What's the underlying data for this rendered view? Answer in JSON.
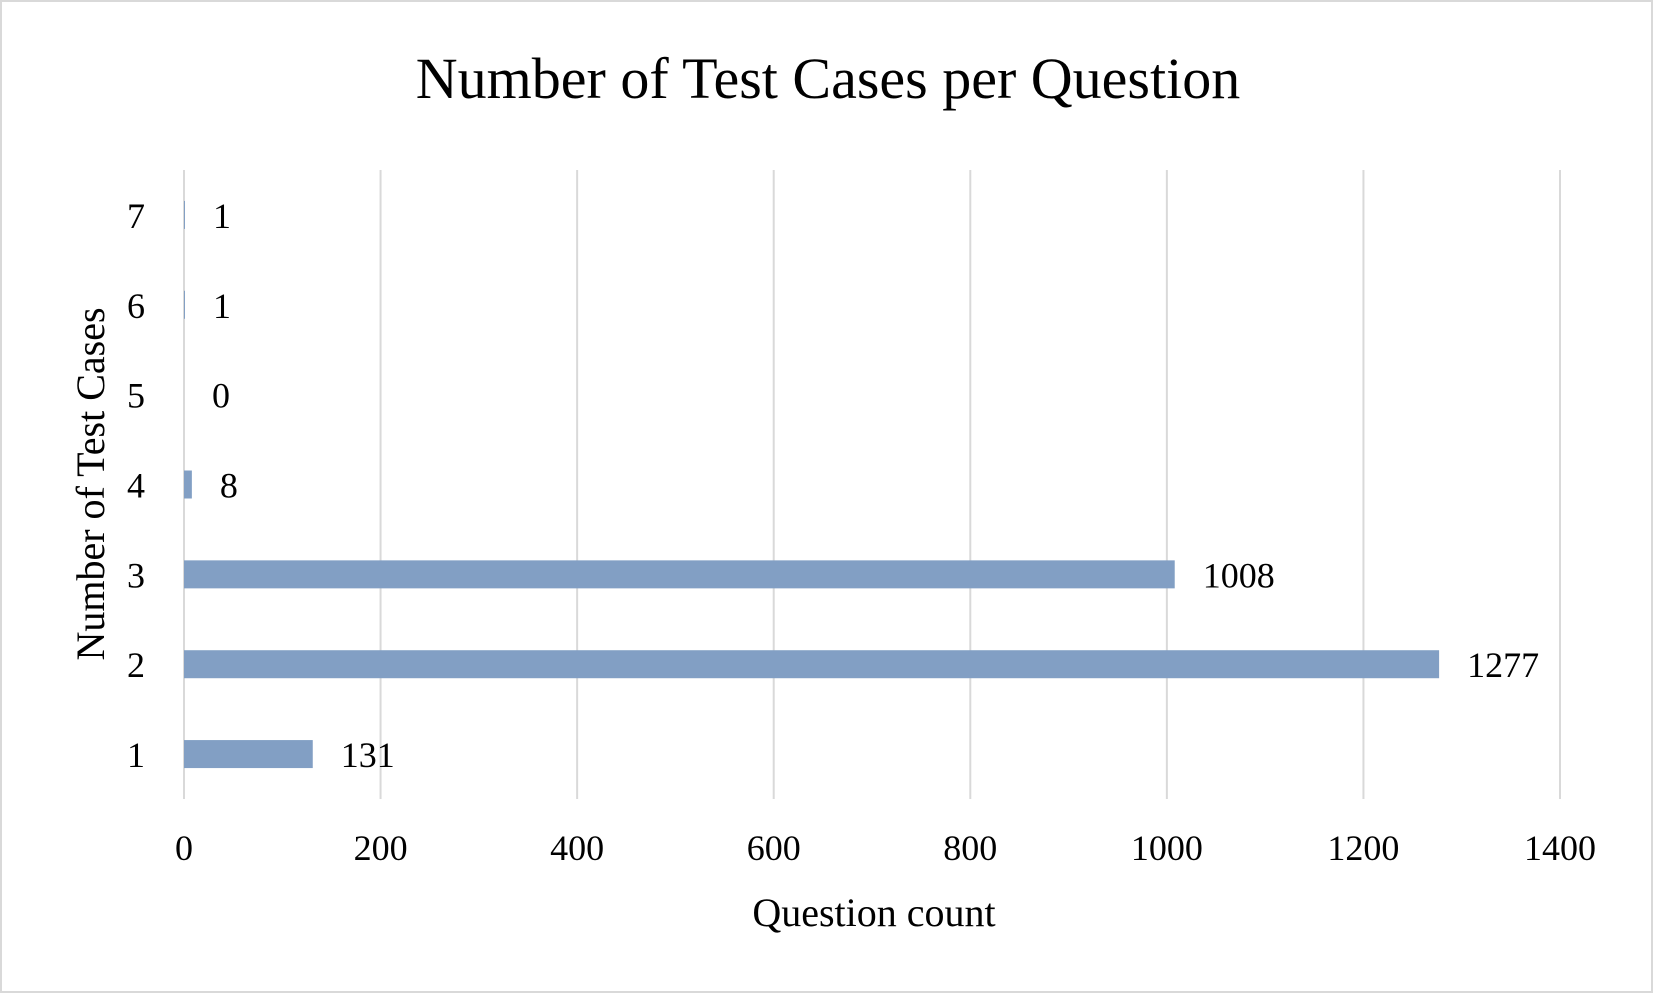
{
  "chart_data": {
    "type": "bar",
    "orientation": "horizontal",
    "title": "Number of Test Cases per Question",
    "xlabel": "Question count",
    "ylabel": "Number of Test Cases",
    "categories": [
      "1",
      "2",
      "3",
      "4",
      "5",
      "6",
      "7"
    ],
    "values": [
      131,
      1277,
      1008,
      8,
      0,
      1,
      1
    ],
    "data_labels": [
      "131",
      "1277",
      "1008",
      "8",
      "0",
      "1",
      "1"
    ],
    "xlim": [
      0,
      1400
    ],
    "x_ticks": [
      0,
      200,
      400,
      600,
      800,
      1000,
      1200,
      1400
    ],
    "x_tick_labels": [
      "0",
      "200",
      "400",
      "600",
      "800",
      "1000",
      "1200",
      "1400"
    ],
    "grid": "vertical",
    "legend": "none",
    "colors": {
      "bar": "#829fc4",
      "grid": "#d9d9d9",
      "text": "#000000",
      "border": "#d9d9d9"
    }
  }
}
